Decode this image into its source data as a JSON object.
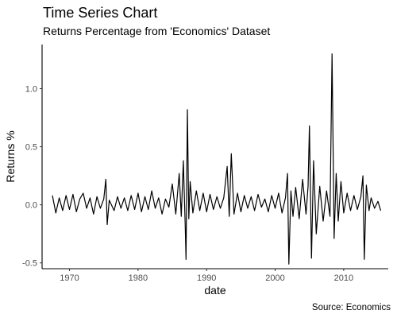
{
  "chart_data": {
    "type": "line",
    "title": "Time Series Chart",
    "subtitle": "Returns Percentage from 'Economics' Dataset",
    "xlabel": "date",
    "ylabel": "Returns %",
    "caption": "Source: Economics",
    "xlim": [
      1966,
      2016.5
    ],
    "ylim": [
      -0.55,
      1.38
    ],
    "x_ticks": [
      1970,
      1980,
      1990,
      2000,
      2010
    ],
    "y_ticks": [
      -0.5,
      0.0,
      0.5,
      1.0
    ],
    "y_tick_labels": [
      "-0.5",
      "0.0",
      "0.5",
      "1.0"
    ],
    "grid": false,
    "legend": "none",
    "line_color": "#000000",
    "series": [
      {
        "x": [
          1967.5,
          1968.0,
          1968.5,
          1969.0,
          1969.5,
          1970.0,
          1970.5,
          1971.0,
          1971.5,
          1972.0,
          1972.5,
          1973.0,
          1973.5,
          1974.0,
          1974.5,
          1975.0,
          1975.3,
          1975.5,
          1975.8,
          1976.5,
          1977.0,
          1977.5,
          1978.0,
          1978.5,
          1979.0,
          1979.5,
          1980.0,
          1980.5,
          1981.0,
          1981.5,
          1982.0,
          1982.5,
          1983.0,
          1983.5,
          1984.0,
          1984.5,
          1985.0,
          1985.5,
          1986.0,
          1986.3,
          1986.6,
          1986.9,
          1987.0,
          1987.2,
          1987.4,
          1987.6,
          1988.0,
          1988.5,
          1989.0,
          1989.5,
          1990.0,
          1990.5,
          1991.0,
          1991.5,
          1992.0,
          1992.5,
          1993.0,
          1993.3,
          1993.6,
          1994.0,
          1994.5,
          1995.0,
          1995.5,
          1996.0,
          1996.5,
          1997.0,
          1997.5,
          1998.0,
          1998.5,
          1999.0,
          1999.5,
          2000.0,
          2000.5,
          2001.0,
          2001.5,
          2001.8,
          2002.0,
          2002.3,
          2002.6,
          2003.0,
          2003.5,
          2004.0,
          2004.5,
          2004.8,
          2005.0,
          2005.3,
          2005.6,
          2006.0,
          2006.5,
          2007.0,
          2007.5,
          2008.0,
          2008.3,
          2008.6,
          2008.9,
          2009.2,
          2009.6,
          2010.0,
          2010.5,
          2011.0,
          2011.5,
          2012.0,
          2012.5,
          2012.8,
          2013.0,
          2013.3,
          2013.7,
          2014.0,
          2014.5,
          2015.0,
          2015.4
        ],
        "y": [
          0.08,
          -0.07,
          0.06,
          -0.05,
          0.08,
          -0.04,
          0.09,
          -0.06,
          0.05,
          0.1,
          -0.03,
          0.06,
          -0.08,
          0.07,
          -0.03,
          0.05,
          0.22,
          -0.17,
          0.04,
          -0.05,
          0.07,
          -0.03,
          0.06,
          -0.05,
          0.08,
          -0.04,
          0.1,
          -0.06,
          0.07,
          -0.04,
          0.12,
          -0.03,
          0.06,
          -0.08,
          0.05,
          -0.02,
          0.18,
          -0.08,
          0.27,
          -0.1,
          0.38,
          -0.21,
          -0.47,
          0.82,
          -0.12,
          0.2,
          -0.07,
          0.12,
          -0.05,
          0.1,
          -0.06,
          0.09,
          -0.04,
          0.07,
          -0.03,
          0.06,
          0.33,
          -0.1,
          0.44,
          -0.08,
          0.1,
          -0.06,
          0.08,
          -0.03,
          0.07,
          -0.05,
          0.09,
          -0.02,
          0.05,
          -0.06,
          0.08,
          -0.03,
          0.1,
          -0.07,
          0.06,
          0.27,
          -0.51,
          0.12,
          -0.1,
          0.15,
          -0.12,
          0.22,
          -0.08,
          0.16,
          0.68,
          -0.46,
          0.38,
          -0.25,
          0.16,
          -0.14,
          0.12,
          -0.1,
          1.3,
          -0.29,
          0.27,
          -0.14,
          0.2,
          -0.07,
          0.1,
          -0.05,
          0.08,
          -0.04,
          0.07,
          0.25,
          -0.47,
          0.17,
          -0.05,
          0.06,
          -0.03,
          0.03,
          -0.05
        ]
      }
    ]
  }
}
